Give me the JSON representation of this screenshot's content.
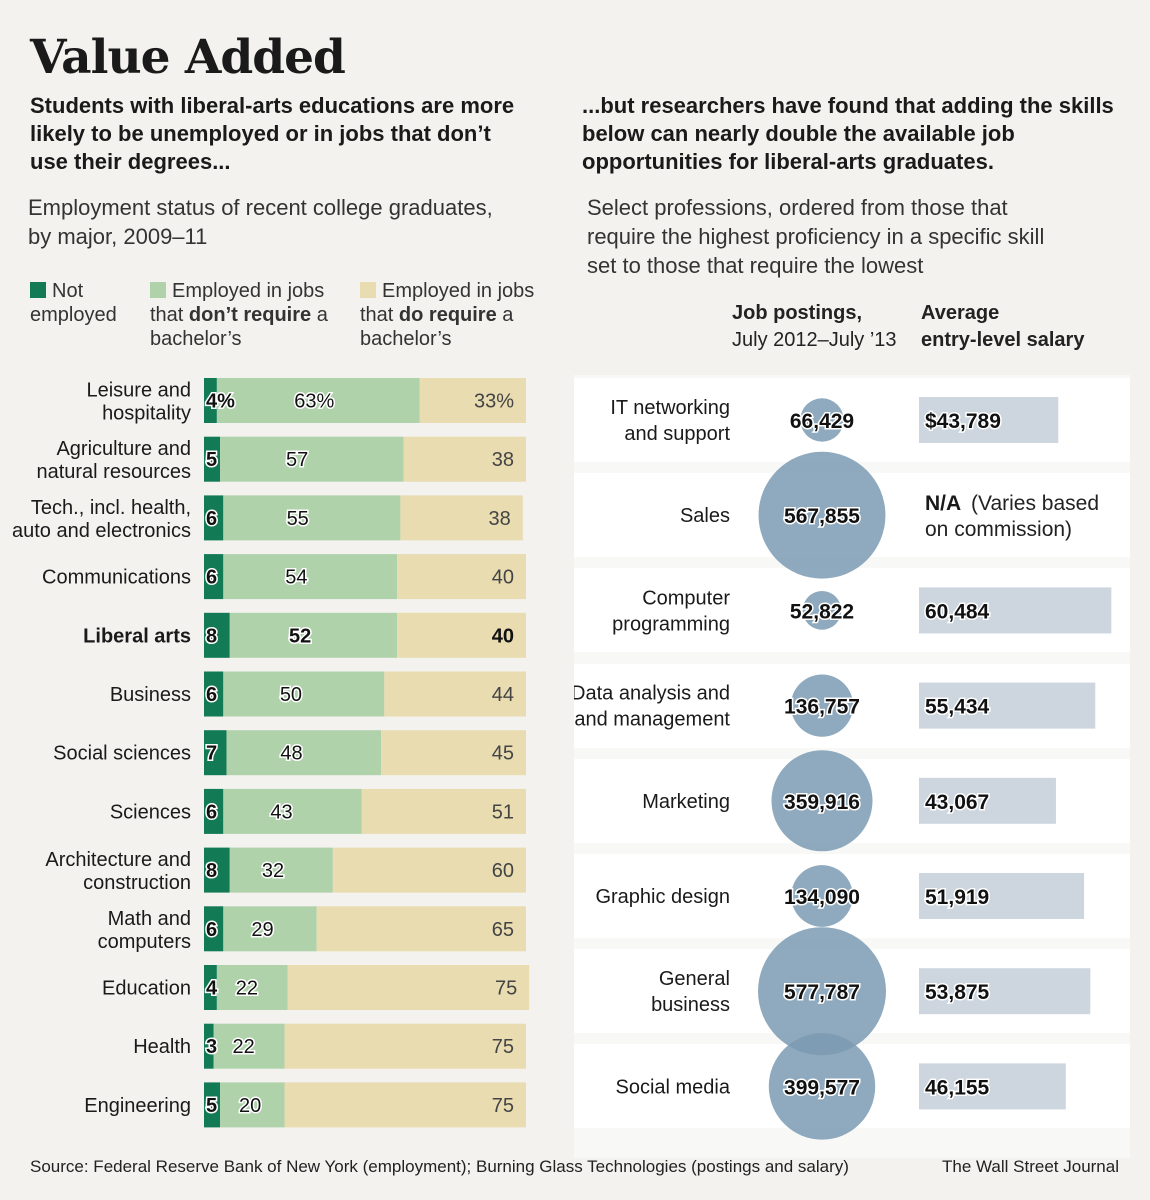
{
  "title": "Value Added",
  "left_lede": "Students with liberal-arts educations are more likely to be unemployed or in jobs that don’t use their degrees...",
  "right_lede": "...but researchers have found that adding the skills below can nearly double the available job opportunities for liberal-arts graduates.",
  "left_sub_line1": "Employment status of recent college graduates,",
  "left_sub_line2": "by major, 2009–11",
  "right_sub_line1": "Select professions, ordered from those that",
  "right_sub_line2": "require the highest proficiency in a specific skill",
  "right_sub_line3": "set to those that require the lowest",
  "legend": {
    "not_employed": {
      "line1": "Not",
      "line2": "employed",
      "color": "#127a55"
    },
    "not_require": {
      "line1": "Employed in jobs",
      "line2_pre": "that ",
      "line2_bold": "don’t require",
      "line2_post": " a",
      "line3": "bachelor’s",
      "color": "#afd2ab"
    },
    "do_require": {
      "line1": "Employed in jobs",
      "line2_pre": "that ",
      "line2_bold": "do require",
      "line2_post": " a",
      "line3": "bachelor’s",
      "color": "#e8dcb0"
    }
  },
  "right_headers": {
    "postings_line1": "Job postings,",
    "postings_line2": "July 2012–July ’13",
    "salary_line1": "Average",
    "salary_line2": "entry-level salary"
  },
  "chart_data": [
    {
      "type": "bar",
      "stacked": true,
      "orientation": "horizontal",
      "unit": "%",
      "categories": [
        [
          "Leisure and",
          "hospitality"
        ],
        [
          "Agriculture and",
          "natural resources"
        ],
        [
          "Tech., incl. health,",
          "auto and electronics"
        ],
        [
          "Communications"
        ],
        [
          "Liberal arts"
        ],
        [
          "Business"
        ],
        [
          "Social sciences"
        ],
        [
          "Sciences"
        ],
        [
          "Architecture and",
          "construction"
        ],
        [
          "Math and",
          "computers"
        ],
        [
          "Education"
        ],
        [
          "Health"
        ],
        [
          "Engineering"
        ]
      ],
      "highlight_category": 4,
      "series": [
        {
          "name": "Not employed",
          "color": "#127a55",
          "values": [
            4,
            5,
            6,
            6,
            8,
            6,
            7,
            6,
            8,
            6,
            4,
            3,
            5
          ]
        },
        {
          "name": "Employed in jobs that don’t require a bachelor’s",
          "color": "#afd2ab",
          "values": [
            63,
            57,
            55,
            54,
            52,
            50,
            48,
            43,
            32,
            29,
            22,
            22,
            20
          ]
        },
        {
          "name": "Employed in jobs that do require a bachelor’s",
          "color": "#e8dcb0",
          "values": [
            33,
            38,
            38,
            40,
            40,
            44,
            45,
            51,
            60,
            65,
            75,
            75,
            75
          ]
        }
      ],
      "labels_first_row": [
        "4%",
        "63%",
        "33%"
      ]
    },
    {
      "type": "scatter",
      "encoding": "bubble area = job postings; bar length = salary",
      "professions": [
        {
          "label": [
            "IT networking",
            "and support"
          ],
          "postings": 66429,
          "postings_label": "66,429",
          "salary": 43789,
          "salary_label": "$43,789"
        },
        {
          "label": [
            "Sales"
          ],
          "postings": 567855,
          "postings_label": "567,855",
          "salary": null,
          "salary_label": "N/A",
          "salary_note": [
            "(Varies based",
            "on commission)"
          ]
        },
        {
          "label": [
            "Computer",
            "programming"
          ],
          "postings": 52822,
          "postings_label": "52,822",
          "salary": 60484,
          "salary_label": "60,484"
        },
        {
          "label": [
            "Data analysis and",
            "and management"
          ],
          "postings": 136757,
          "postings_label": "136,757",
          "salary": 55434,
          "salary_label": "55,434"
        },
        {
          "label": [
            "Marketing"
          ],
          "postings": 359916,
          "postings_label": "359,916",
          "salary": 43067,
          "salary_label": "43,067"
        },
        {
          "label": [
            "Graphic design"
          ],
          "postings": 134090,
          "postings_label": "134,090",
          "salary": 51919,
          "salary_label": "51,919"
        },
        {
          "label": [
            "General",
            "business"
          ],
          "postings": 577787,
          "postings_label": "577,787",
          "salary": 53875,
          "salary_label": "53,875"
        },
        {
          "label": [
            "Social media"
          ],
          "postings": 399577,
          "postings_label": "399,577",
          "salary": 46155,
          "salary_label": "46,155"
        }
      ],
      "bubble_color": "#7b9bb3",
      "salary_bar_color": "#cdd6de"
    }
  ],
  "footer": {
    "source": "Source: Federal Reserve Bank of New York (employment); Burning Glass Technologies (postings and salary)",
    "credit": "The Wall Street Journal"
  }
}
